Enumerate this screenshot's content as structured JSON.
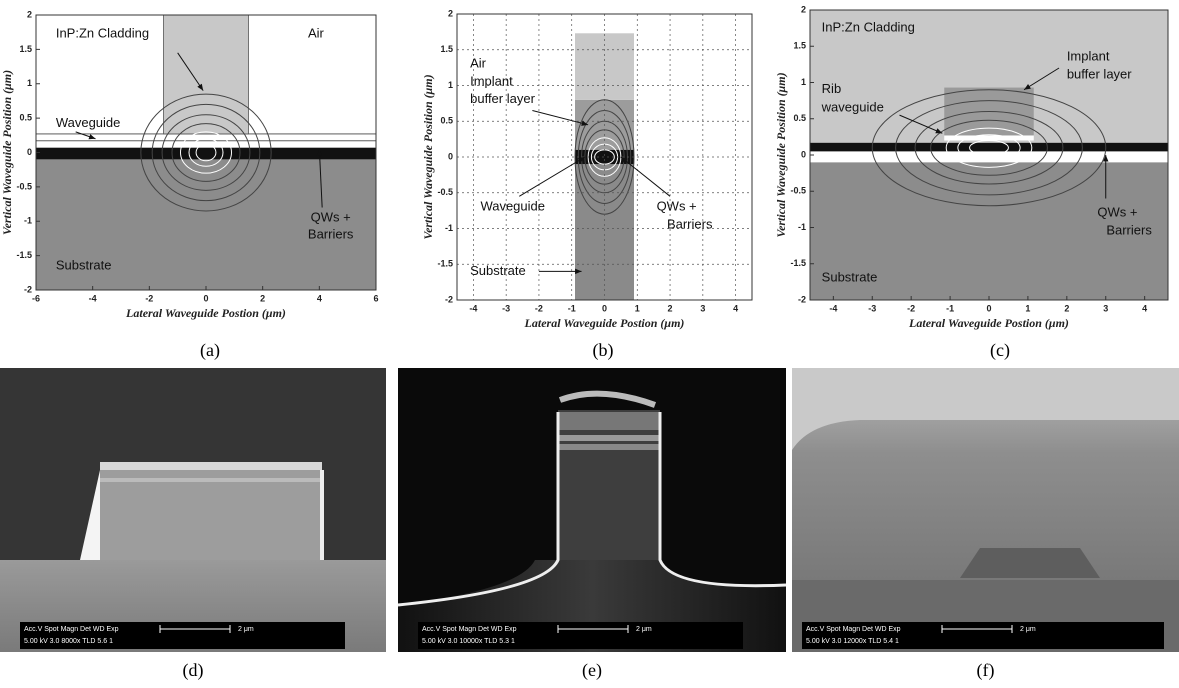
{
  "panels": [
    {
      "type": "plot",
      "caption": "(a)",
      "xlabel": "Lateral Waveguide Postion (μm)",
      "ylabel": "Vertical Waveguide Position (μm)",
      "xlim": [
        -6,
        6
      ],
      "ylim": [
        -2,
        2
      ],
      "xticks": [
        -6,
        -4,
        -2,
        0,
        2,
        4,
        6
      ],
      "yticks": [
        -2,
        -1.5,
        -1,
        -0.5,
        0,
        0.5,
        1,
        1.5,
        2
      ],
      "grid": false,
      "annotations": [
        "InP:Zn Cladding",
        "Air",
        "Waveguide",
        "QWs +",
        "Barriers",
        "Substrate"
      ]
    },
    {
      "type": "plot",
      "caption": "(b)",
      "xlabel": "Lateral Waveguide Postion (μm)",
      "ylabel": "Vertical Waveguide Position (μm)",
      "xlim": [
        -4.5,
        4.5
      ],
      "ylim": [
        -2,
        2
      ],
      "xticks": [
        -4,
        -3,
        -2,
        -1,
        0,
        1,
        2,
        3,
        4
      ],
      "yticks": [
        -2,
        -1.5,
        -1,
        -0.5,
        0,
        0.5,
        1,
        1.5,
        2
      ],
      "grid": true,
      "annotations": [
        "Air",
        "Implant",
        "buffer layer",
        "Waveguide",
        "QWs +",
        "Barriers",
        "Substrate"
      ]
    },
    {
      "type": "plot",
      "caption": "(c)",
      "xlabel": "Lateral Waveguide Postion (μm)",
      "ylabel": "Vertical Waveguide Position (μm)",
      "xlim": [
        -4.6,
        4.6
      ],
      "ylim": [
        -2,
        2
      ],
      "xticks": [
        -4,
        -3,
        -2,
        -1,
        0,
        1,
        2,
        3,
        4
      ],
      "yticks": [
        -2,
        -1.5,
        -1,
        -0.5,
        0,
        0.5,
        1,
        1.5,
        2
      ],
      "grid": false,
      "annotations": [
        "InP:Zn Cladding",
        "Implant",
        "buffer layer",
        "Rib",
        "waveguide",
        "QWs +",
        "Barriers",
        "Substrate"
      ]
    },
    {
      "type": "sem",
      "caption": "(d)",
      "info_header": "Acc.V  Spot Magn    Det  WD  Exp",
      "info_values": "5.00 kV 3.0   8000x   TLD 5.6   1",
      "scale": "2 μm"
    },
    {
      "type": "sem",
      "caption": "(e)",
      "info_header": "Acc.V  Spot Magn    Det  WD  Exp",
      "info_values": "5.00 kV 3.0  10000x  TLD 5.3   1",
      "scale": "2 μm"
    },
    {
      "type": "sem",
      "caption": "(f)",
      "info_header": "Acc.V  Spot Magn    Det  WD  Exp",
      "info_values": "5.00 kV 3.0  12000x  TLD 5.4   1",
      "scale": "2 μm"
    }
  ]
}
